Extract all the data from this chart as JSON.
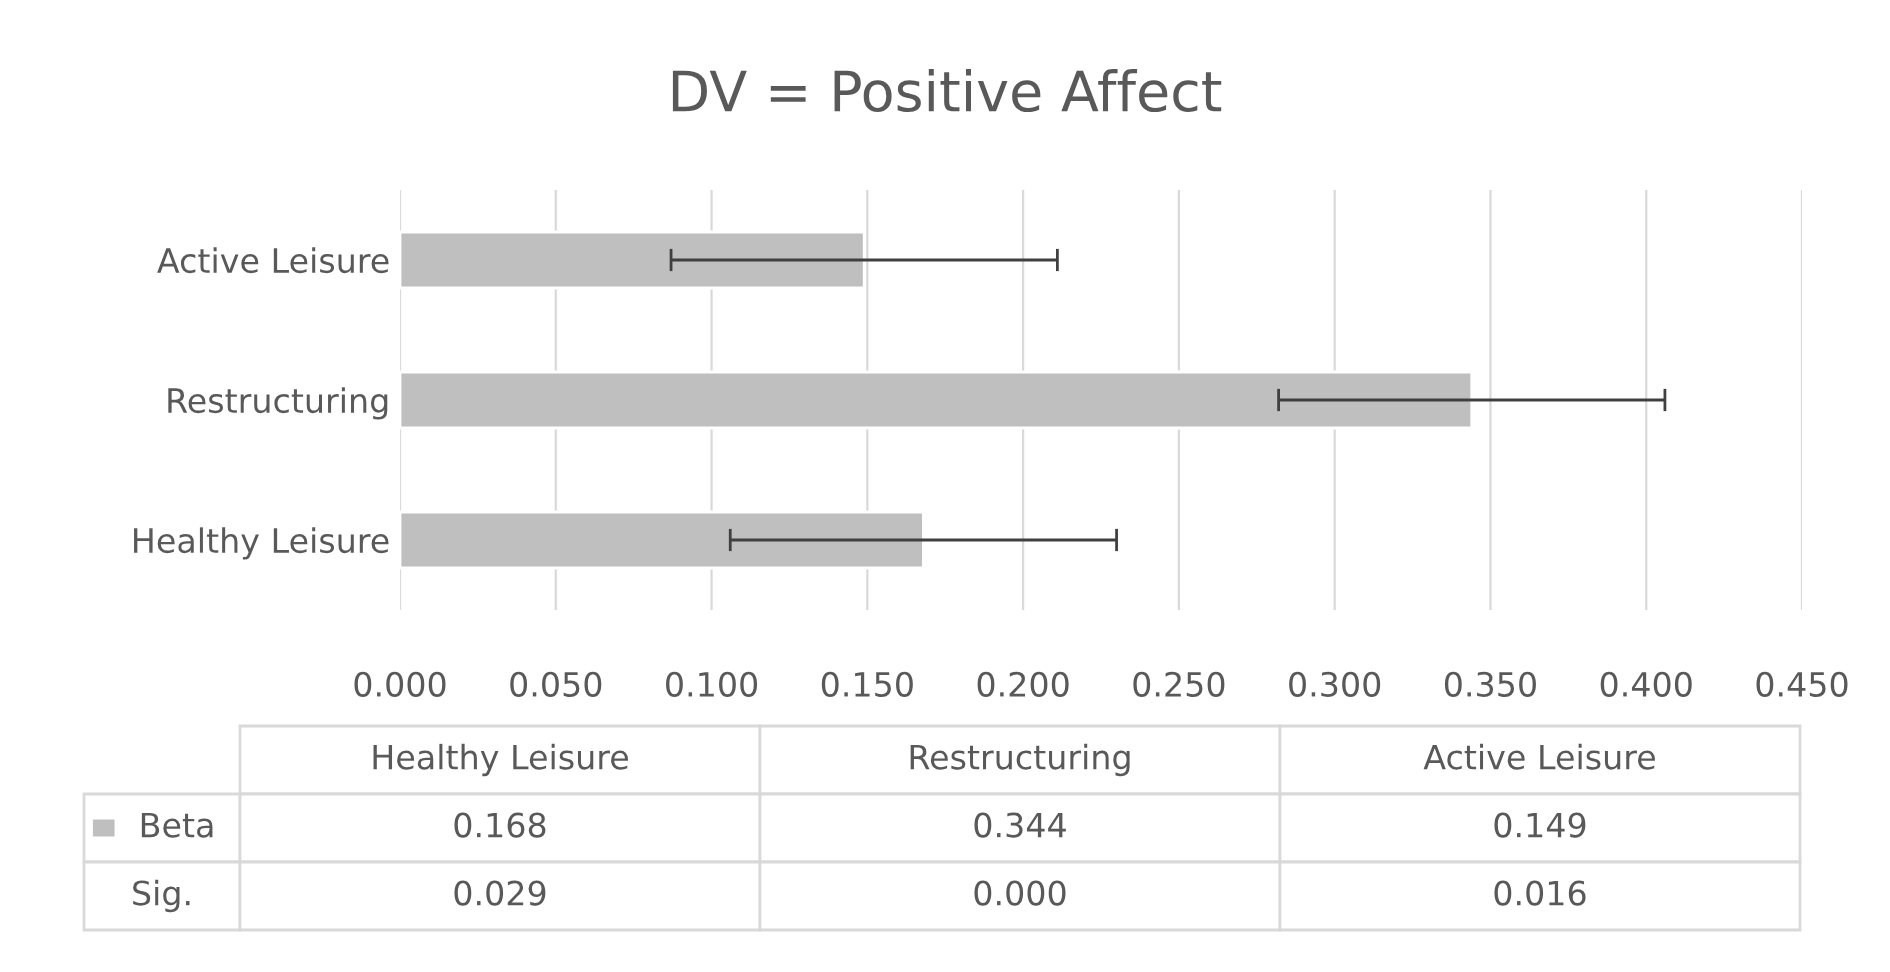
{
  "chart_data": {
    "type": "bar",
    "orientation": "horizontal",
    "title": "DV = Positive Affect",
    "categories": [
      "Active Leisure",
      "Restructuring",
      "Healthy Leisure"
    ],
    "series": [
      {
        "name": "Beta",
        "color": "#bfbfbf",
        "values": [
          0.149,
          0.344,
          0.168
        ],
        "errors": [
          0.062,
          0.062,
          0.062
        ]
      }
    ],
    "xlim": [
      0,
      0.45
    ],
    "xticks": [
      {
        "value": 0,
        "label": "0.000"
      },
      {
        "value": 0.05,
        "label": "0.050"
      },
      {
        "value": 0.1,
        "label": "0.100"
      },
      {
        "value": 0.15,
        "label": "0.150"
      },
      {
        "value": 0.2,
        "label": "0.200"
      },
      {
        "value": 0.25,
        "label": "0.250"
      },
      {
        "value": 0.3,
        "label": "0.300"
      },
      {
        "value": 0.35,
        "label": "0.350"
      },
      {
        "value": 0.4,
        "label": "0.400"
      },
      {
        "value": 0.45,
        "label": "0.450"
      }
    ],
    "grid": "x",
    "legend": "bottom",
    "annotations": [
      "0.168",
      "0.344",
      "0.149",
      "Sig.",
      "0.029",
      "0.000",
      "0.016"
    ]
  }
}
